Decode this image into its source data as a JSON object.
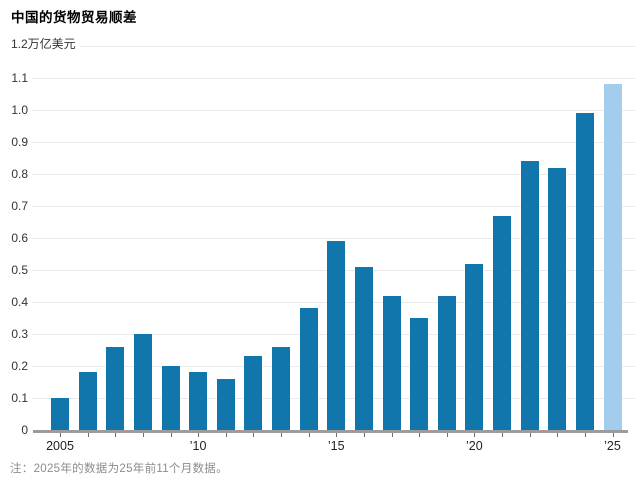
{
  "header": {
    "title": "中国的货物贸易顺差"
  },
  "chart_data": {
    "type": "bar",
    "title": "中国的货物贸易顺差",
    "unit": "万亿美元",
    "y_top_label": "1.2万亿美元",
    "categories": [
      "2005",
      "2006",
      "2007",
      "2008",
      "2009",
      "2010",
      "2011",
      "2012",
      "2013",
      "2014",
      "2015",
      "2016",
      "2017",
      "2018",
      "2019",
      "2020",
      "2021",
      "2022",
      "2023",
      "2024",
      "2025"
    ],
    "values": [
      0.1,
      0.18,
      0.26,
      0.3,
      0.2,
      0.18,
      0.16,
      0.23,
      0.26,
      0.38,
      0.59,
      0.51,
      0.42,
      0.35,
      0.42,
      0.52,
      0.67,
      0.84,
      0.82,
      0.99,
      1.08
    ],
    "highlight_index": 20,
    "ylim": [
      0,
      1.2
    ],
    "ytick_step": 0.1,
    "ytick_labels": [
      "0",
      "0.1",
      "0.2",
      "0.3",
      "0.4",
      "0.5",
      "0.6",
      "0.7",
      "0.8",
      "0.9",
      "1.0",
      "1.1",
      "1.2万亿美元"
    ],
    "xticks": [
      {
        "index": 0,
        "label": "2005"
      },
      {
        "index": 5,
        "label": "’10"
      },
      {
        "index": 10,
        "label": "’15"
      },
      {
        "index": 15,
        "label": "’20"
      },
      {
        "index": 20,
        "label": "’25"
      }
    ],
    "grid": true,
    "legend": null,
    "colors": {
      "bar": "#1076ac",
      "bar_highlight": "#a2cdec",
      "gridline": "#ebebeb",
      "axis_line": "#9c9c9c",
      "tick": "#6f6f6f",
      "y_label": "#333333",
      "x_label": "#222222",
      "note": "#8c8c8c"
    }
  },
  "footer": {
    "note": "注：2025年的数据为25年前11个月数据。"
  }
}
